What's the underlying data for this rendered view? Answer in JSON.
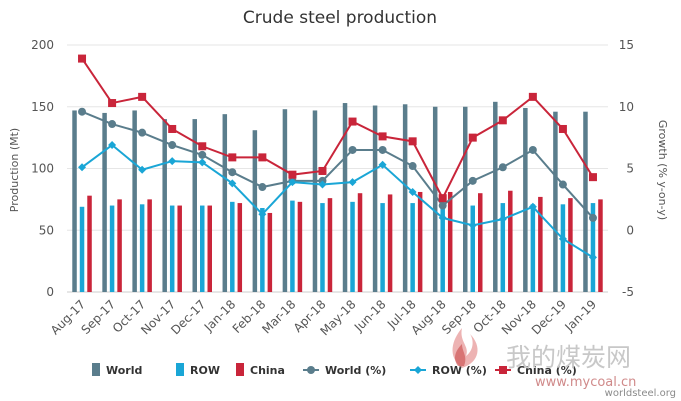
{
  "chart_data": {
    "type": "bar",
    "title": "Crude steel production",
    "ylabel": "Production (Mt)",
    "y2label": "Growth (% y-on-y)",
    "ylim": [
      0,
      200
    ],
    "y2lim": [
      -5,
      15
    ],
    "y_ticks": [
      "0",
      "50",
      "100",
      "150",
      "200"
    ],
    "y2_ticks": [
      "-5",
      "0",
      "5",
      "10",
      "15"
    ],
    "categories": [
      "Aug-17",
      "Sep-17",
      "Oct-17",
      "Nov-17",
      "Dec-17",
      "Jan-18",
      "Feb-18",
      "Mar-18",
      "Apr-18",
      "May-18",
      "Jun-18",
      "Jul-18",
      "Aug-18",
      "Sep-18",
      "Oct-18",
      "Nov-18",
      "Dec-19",
      "Jan-19"
    ],
    "series": [
      {
        "name": "World",
        "kind": "bar",
        "axis": "left",
        "color": "#5a7d8c",
        "values": [
          147,
          145,
          147,
          140,
          140,
          144,
          131,
          148,
          147,
          153,
          151,
          152,
          150,
          150,
          154,
          149,
          146,
          146
        ]
      },
      {
        "name": "ROW",
        "kind": "bar",
        "axis": "left",
        "color": "#1aa6d6",
        "values": [
          69,
          70,
          71,
          70,
          70,
          73,
          68,
          74,
          72,
          73,
          72,
          72,
          72,
          70,
          72,
          71,
          71,
          72
        ]
      },
      {
        "name": "China",
        "kind": "bar",
        "axis": "left",
        "color": "#c9253a",
        "values": [
          78,
          75,
          75,
          70,
          70,
          72,
          64,
          73,
          76,
          80,
          79,
          81,
          81,
          80,
          82,
          77,
          76,
          75
        ]
      },
      {
        "name": "World (%)",
        "kind": "line",
        "axis": "right",
        "color": "#5a7d8c",
        "values": [
          9.6,
          8.6,
          7.9,
          6.9,
          6.1,
          4.7,
          3.5,
          4.0,
          4.0,
          6.5,
          6.5,
          5.2,
          2.0,
          4.0,
          5.1,
          6.5,
          3.7,
          1.0
        ]
      },
      {
        "name": "ROW (%)",
        "kind": "line",
        "axis": "right",
        "color": "#1aa6d6",
        "values": [
          5.1,
          6.9,
          4.9,
          5.6,
          5.5,
          3.8,
          1.3,
          3.9,
          3.7,
          3.9,
          5.3,
          3.1,
          1.0,
          0.4,
          0.9,
          1.9,
          -0.7,
          -2.2
        ]
      },
      {
        "name": "China (%)",
        "kind": "line",
        "axis": "right",
        "color": "#c9253a",
        "values": [
          13.9,
          10.3,
          10.8,
          8.2,
          6.8,
          5.9,
          5.9,
          4.5,
          4.8,
          8.8,
          7.6,
          7.2,
          2.6,
          7.5,
          8.9,
          10.8,
          8.2,
          4.3
        ]
      }
    ],
    "legend": "bottom",
    "grid": true
  },
  "legend_items": [
    {
      "label": "World"
    },
    {
      "label": "ROW"
    },
    {
      "label": "China"
    },
    {
      "label": "World (%)"
    },
    {
      "label": "ROW (%)"
    },
    {
      "label": "China (%)"
    }
  ],
  "credit": "worldsteel.org",
  "watermark": {
    "text": "我的煤炭网",
    "url": "www.mycoal.cn"
  }
}
